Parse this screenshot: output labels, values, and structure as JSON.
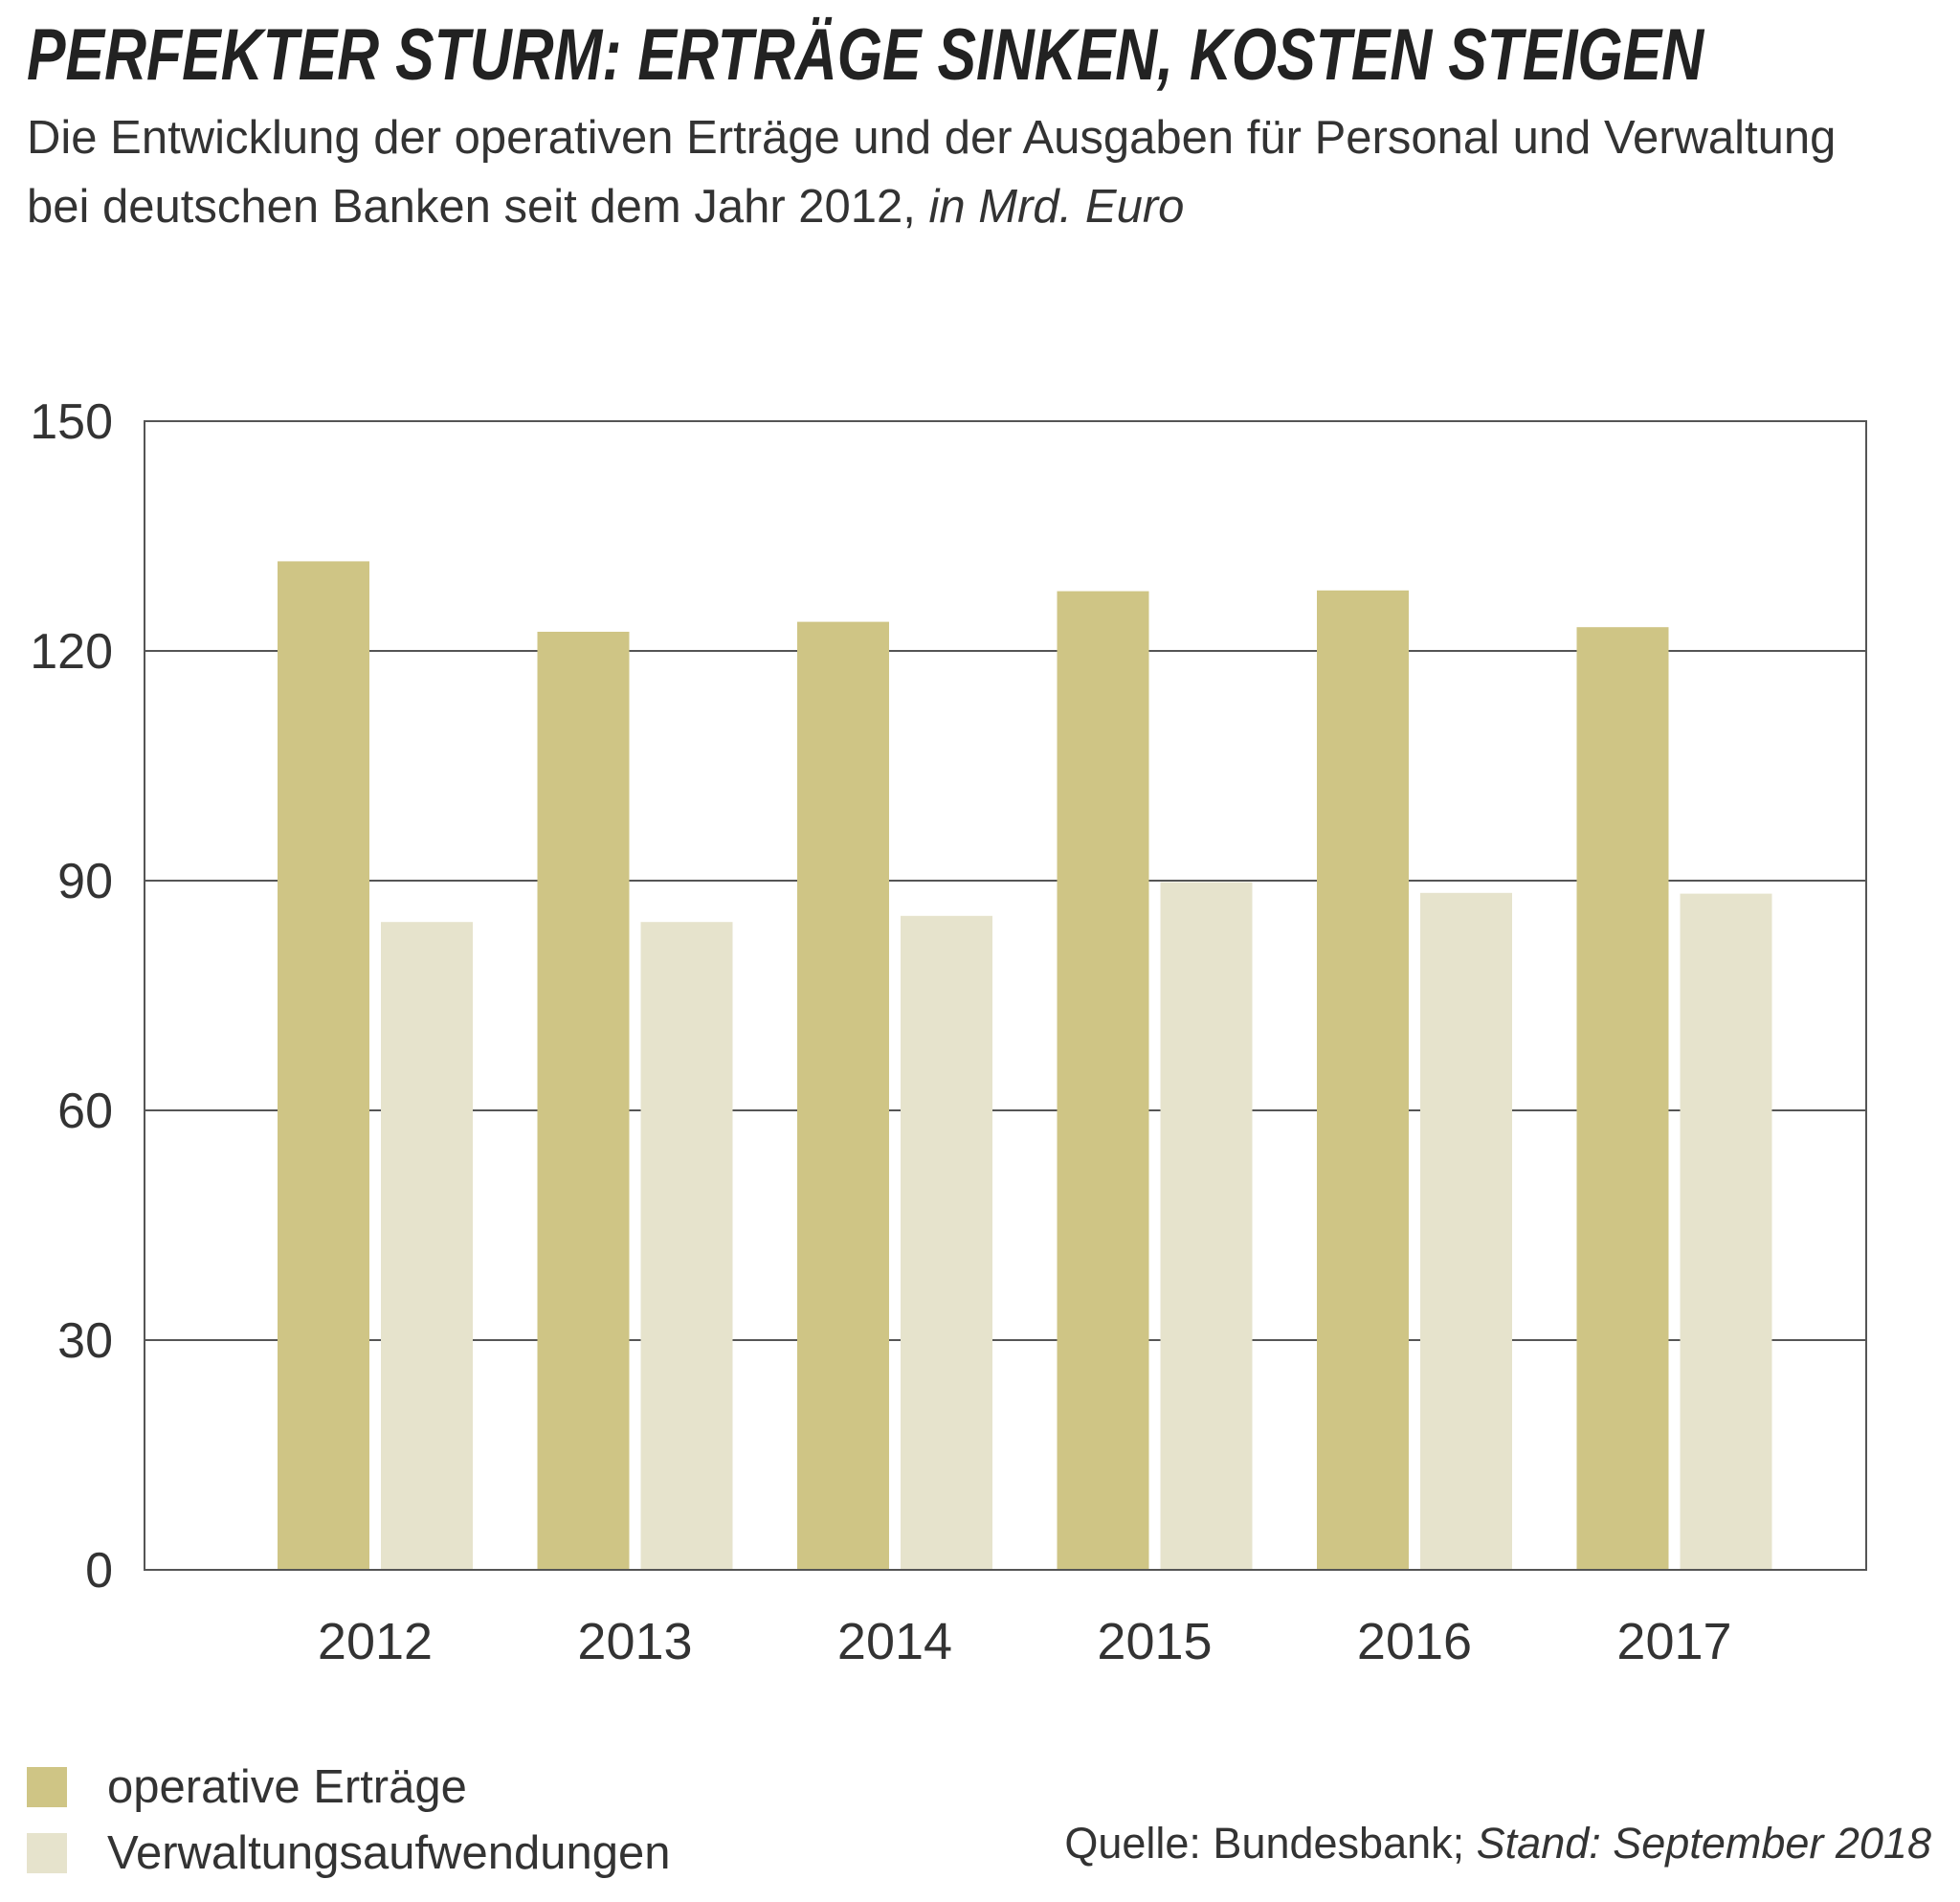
{
  "chart_data": {
    "type": "bar",
    "title": "PERFEKTER STURM: ERTRÄGE SINKEN, KOSTEN STEIGEN",
    "subtitle": "Die Entwicklung der operativen Erträge und der Ausgaben für Personal und Verwaltung bei deutschen Banken seit dem Jahr 2012,",
    "unit_note": "in Mrd. Euro",
    "categories": [
      "2012",
      "2013",
      "2014",
      "2015",
      "2016",
      "2017"
    ],
    "series": [
      {
        "name": "operative Erträge",
        "color": "#cfc585",
        "values": [
          131.7,
          122.5,
          123.8,
          127.8,
          127.9,
          123.1
        ]
      },
      {
        "name": "Verwaltungsaufwendungen",
        "color": "#e6e3cc",
        "values": [
          84.6,
          84.6,
          85.4,
          89.8,
          88.4,
          88.3
        ]
      }
    ],
    "ylim": [
      0,
      150
    ],
    "yticks": [
      "0",
      "30",
      "60",
      "90",
      "120",
      "150"
    ],
    "grid": true,
    "legend_position": "bottom-left",
    "source": "Quelle: Bundesbank;",
    "source_date": "Stand: September 2018"
  }
}
